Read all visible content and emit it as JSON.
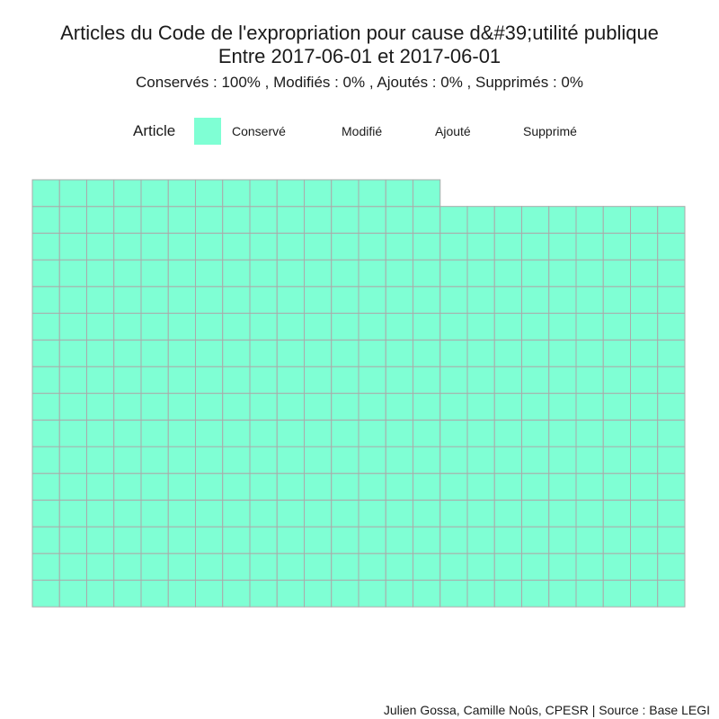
{
  "chart_data": {
    "type": "waffle",
    "title_line1": "Articles du Code de l'expropriation pour cause d&#39;utilité publique",
    "title_line2": "Entre 2017-06-01 et 2017-06-01",
    "subtitle": "Conservés :  100% , Modifiés :  0% , Ajoutés :  0% , Supprimés :  0%",
    "legend": {
      "title": "Article",
      "position": "top",
      "items": [
        {
          "label": "Conservé",
          "color": "#7fffd4"
        },
        {
          "label": "Modifié",
          "color": null
        },
        {
          "label": "Ajouté",
          "color": null
        },
        {
          "label": "Supprimé",
          "color": null
        }
      ]
    },
    "grid": {
      "columns": 16,
      "rows_per_column": 24,
      "cells": 375,
      "fill_order": "column-wise from bottom"
    },
    "series": [
      {
        "name": "Conservé",
        "value": 375,
        "percent": 100,
        "color": "#7fffd4"
      },
      {
        "name": "Modifié",
        "value": 0,
        "percent": 0
      },
      {
        "name": "Ajouté",
        "value": 0,
        "percent": 0
      },
      {
        "name": "Supprimé",
        "value": 0,
        "percent": 0
      }
    ],
    "cell_border_color": "#aaaaaa"
  },
  "caption": "Julien Gossa, Camille Noûs, CPESR  |  Source : Base LEGI"
}
